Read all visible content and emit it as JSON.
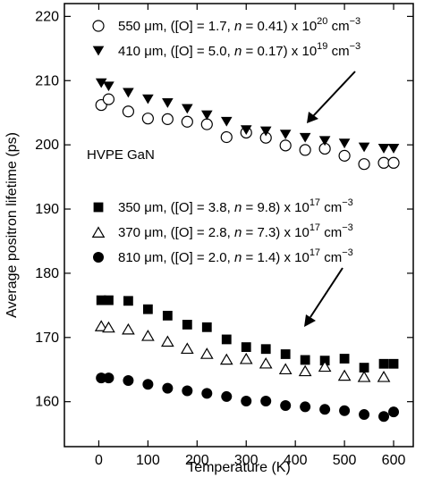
{
  "chart_data": {
    "type": "scatter",
    "xlabel": "Temperature (K)",
    "ylabel": "Average positron lifetime (ps)",
    "xlim": [
      -70,
      640
    ],
    "ylim": [
      153,
      222
    ],
    "xticks": [
      0,
      100,
      200,
      300,
      400,
      500,
      600
    ],
    "yticks": [
      160,
      170,
      180,
      190,
      200,
      210,
      220
    ],
    "grid": false,
    "annotations": [
      {
        "text": "HVPE GaN"
      }
    ],
    "series": [
      {
        "name": "550 μm, ([O] = 1.7, n = 0.41) x 10^20 cm^-3",
        "marker": "circle-open",
        "x": [
          5,
          20,
          60,
          100,
          140,
          180,
          220,
          260,
          300,
          340,
          380,
          420,
          460,
          500,
          540,
          580,
          600
        ],
        "y": [
          206.2,
          207.1,
          205.2,
          204.1,
          204.0,
          203.6,
          203.2,
          201.2,
          201.9,
          201.1,
          199.9,
          199.2,
          199.4,
          198.3,
          197.0,
          197.2,
          197.2
        ]
      },
      {
        "name": "410 μm, ([O] = 5.0, n = 0.17) x 10^19 cm^-3",
        "marker": "triangle-down-filled",
        "x": [
          5,
          20,
          60,
          100,
          140,
          180,
          220,
          260,
          300,
          340,
          380,
          420,
          460,
          500,
          540,
          580,
          600
        ],
        "y": [
          209.6,
          209.1,
          208.1,
          207.1,
          206.5,
          205.6,
          204.6,
          203.6,
          202.3,
          202.1,
          201.6,
          201.1,
          200.6,
          200.2,
          199.6,
          199.4,
          199.4
        ]
      },
      {
        "name": "350 μm, ([O] = 3.8, n = 9.8) x 10^17 cm^-3",
        "marker": "square-filled",
        "x": [
          5,
          20,
          60,
          100,
          140,
          180,
          220,
          260,
          300,
          340,
          380,
          420,
          460,
          500,
          540,
          580,
          600
        ],
        "y": [
          175.8,
          175.8,
          175.7,
          174.4,
          173.4,
          172.0,
          171.6,
          169.7,
          168.5,
          168.2,
          167.4,
          166.5,
          166.4,
          166.7,
          165.3,
          165.9,
          165.9
        ]
      },
      {
        "name": "370 μm, ([O] = 2.8, n = 7.3) x 10^17 cm^-3",
        "marker": "triangle-up-open",
        "x": [
          5,
          20,
          60,
          100,
          140,
          180,
          220,
          260,
          300,
          340,
          380,
          420,
          460,
          500,
          540,
          580
        ],
        "y": [
          171.8,
          171.6,
          171.3,
          170.3,
          169.4,
          168.3,
          167.5,
          166.6,
          166.7,
          166.0,
          165.1,
          164.8,
          165.5,
          164.1,
          163.9,
          163.9
        ]
      },
      {
        "name": "810 μm, ([O] = 2.0, n = 1.4) x 10^17 cm^-3",
        "marker": "circle-filled",
        "x": [
          5,
          20,
          60,
          100,
          140,
          180,
          220,
          260,
          300,
          340,
          380,
          420,
          460,
          500,
          540,
          580,
          600
        ],
        "y": [
          163.7,
          163.7,
          163.3,
          162.7,
          162.1,
          161.7,
          161.3,
          160.8,
          160.1,
          160.1,
          159.4,
          159.2,
          158.8,
          158.6,
          158.0,
          157.7,
          158.4
        ]
      }
    ],
    "legend_groups": [
      {
        "entries": [
          {
            "marker": "circle-open",
            "size": "550 μm",
            "O": "1.7",
            "n": "0.41",
            "exp": "20"
          },
          {
            "marker": "triangle-down-filled",
            "size": "410 μm",
            "O": "5.0",
            "n": "0.17",
            "exp": "19"
          }
        ]
      },
      {
        "entries": [
          {
            "marker": "square-filled",
            "size": "350 μm",
            "O": "3.8",
            "n": "9.8",
            "exp": "17"
          },
          {
            "marker": "triangle-up-open",
            "size": "370 μm",
            "O": "2.8",
            "n": "7.3",
            "exp": "17"
          },
          {
            "marker": "circle-filled",
            "size": "810 μm",
            "O": "2.0",
            "n": "1.4",
            "exp": "17"
          }
        ]
      }
    ],
    "legend_text": {
      "open_paren": ", ([O] = ",
      "n_sep": ", ",
      "n_label": "n",
      "eq": " = ",
      "close": ") x 10",
      "unit": " cm",
      "unit_exp": "−3"
    }
  }
}
